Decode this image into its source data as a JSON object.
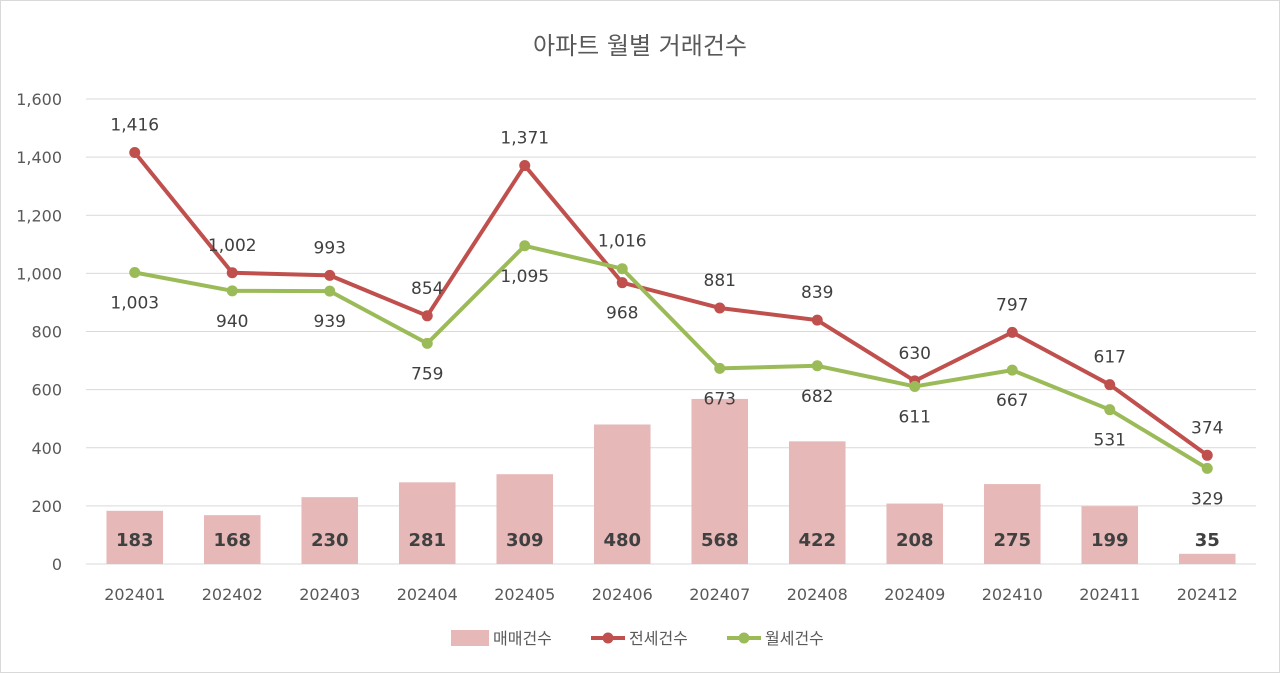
{
  "chart_data": {
    "type": "bar+line",
    "title": "아파트 월별 거래건수",
    "categories": [
      "202401",
      "202402",
      "202403",
      "202404",
      "202405",
      "202406",
      "202407",
      "202408",
      "202409",
      "202410",
      "202411",
      "202412"
    ],
    "series": [
      {
        "name": "매매건수",
        "kind": "bar",
        "color": "#e6b8b7",
        "values": [
          183,
          168,
          230,
          281,
          309,
          480,
          568,
          422,
          208,
          275,
          199,
          35
        ]
      },
      {
        "name": "전세건수",
        "kind": "line",
        "color": "#c0504d",
        "values": [
          1416,
          1002,
          993,
          854,
          1371,
          968,
          881,
          839,
          630,
          797,
          617,
          374
        ]
      },
      {
        "name": "월세건수",
        "kind": "line",
        "color": "#9bbb59",
        "values": [
          1003,
          940,
          939,
          759,
          1095,
          1016,
          673,
          682,
          611,
          667,
          531,
          329
        ]
      }
    ],
    "y_ticks": [
      "0",
      "200",
      "400",
      "600",
      "800",
      "1,000",
      "1,200",
      "1,400",
      "1,600"
    ],
    "ylim": [
      0,
      1600
    ],
    "grid": true,
    "legend_position": "bottom",
    "bar_labels": [
      "183",
      "168",
      "230",
      "281",
      "309",
      "480",
      "568",
      "422",
      "208",
      "275",
      "199",
      "35"
    ],
    "line_labels": {
      "전세건수": [
        "1,416",
        "1,002",
        "993",
        "854",
        "1,371",
        "968",
        "881",
        "839",
        "630",
        "797",
        "617",
        "374"
      ],
      "월세건수": [
        "1,003",
        "940",
        "939",
        "759",
        "1,095",
        "1,016",
        "673",
        "682",
        "611",
        "667",
        "531",
        "329"
      ]
    }
  }
}
